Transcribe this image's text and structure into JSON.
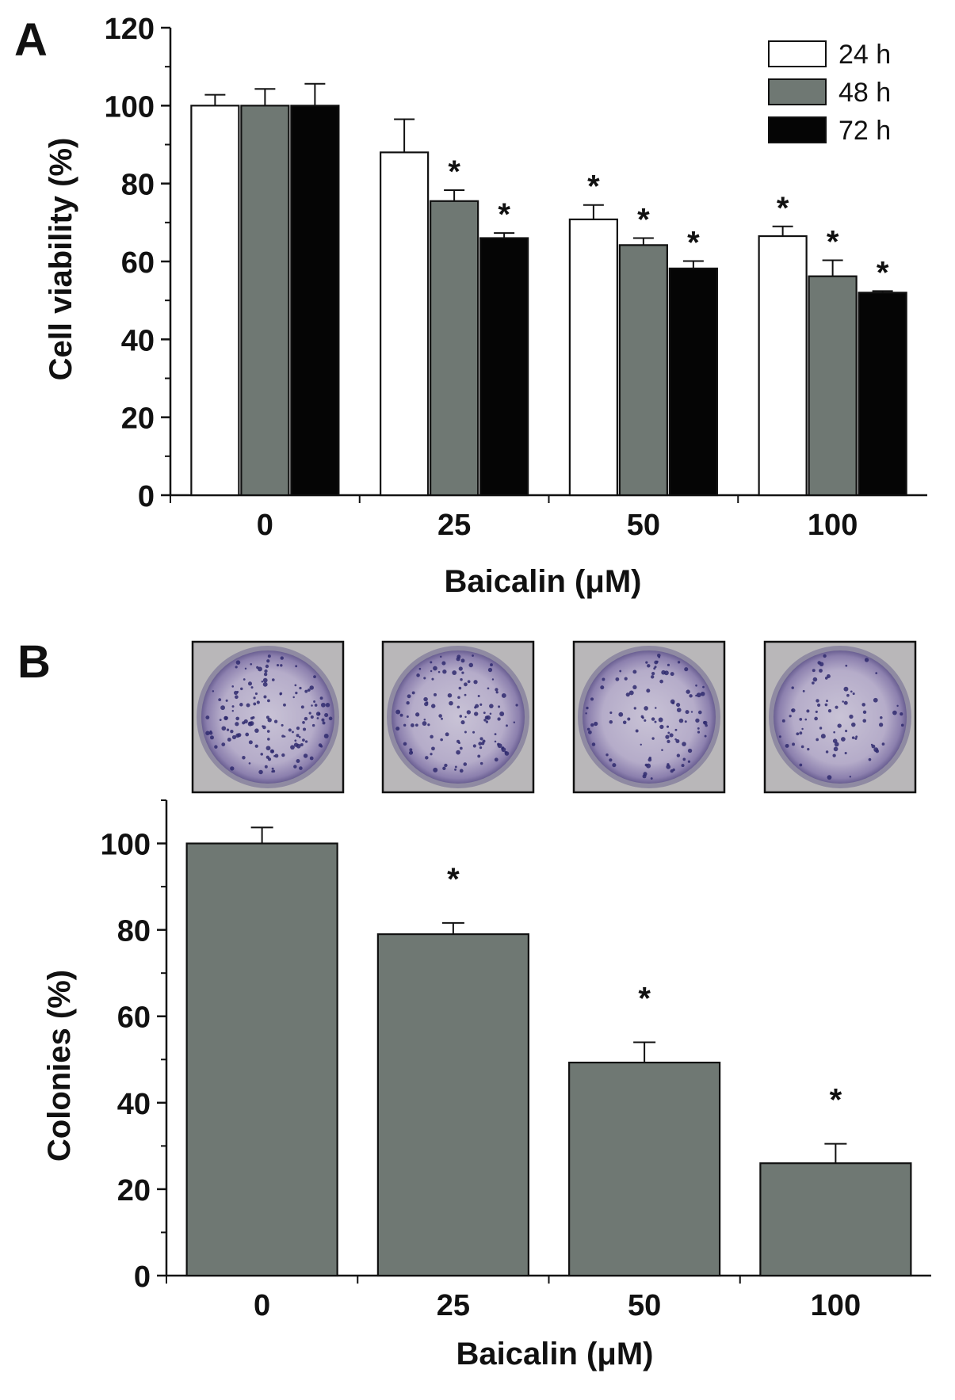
{
  "chart_data": [
    {
      "type": "bar",
      "panel_label": "A",
      "categories": [
        "0",
        "25",
        "50",
        "100"
      ],
      "xlabel": "Baicalin (μM)",
      "ylabel": "Cell viability (%)",
      "ylim": [
        0,
        120
      ],
      "yticks": [
        "0",
        "20",
        "40",
        "60",
        "80",
        "100",
        "120"
      ],
      "legend_position": "top-right",
      "series": [
        {
          "name": "24 h",
          "color": "#ffffff",
          "values": [
            100,
            88,
            70.8,
            66.5
          ],
          "errors": [
            2.8,
            8.5,
            3.7,
            2.5
          ],
          "significance": [
            "",
            "",
            "*",
            "*"
          ]
        },
        {
          "name": "48 h",
          "color": "#6f7873",
          "values": [
            100,
            75.5,
            64.2,
            56.2
          ],
          "errors": [
            4.3,
            2.8,
            1.8,
            4.1
          ],
          "significance": [
            "",
            "*",
            "*",
            "*"
          ]
        },
        {
          "name": "72 h",
          "color": "#050505",
          "values": [
            100,
            66,
            58.2,
            52
          ],
          "errors": [
            5.6,
            1.3,
            1.9,
            0.4
          ],
          "significance": [
            "",
            "*",
            "*",
            "*"
          ]
        }
      ]
    },
    {
      "type": "bar",
      "panel_label": "B",
      "categories": [
        "0",
        "25",
        "50",
        "100"
      ],
      "xlabel": "Baicalin (μM)",
      "ylabel": "Colonies (%)",
      "ylim": [
        0,
        110
      ],
      "yticks": [
        "0",
        "20",
        "40",
        "60",
        "80",
        "100"
      ],
      "series": [
        {
          "color": "#6f7873",
          "values": [
            100,
            79,
            49.3,
            26
          ],
          "errors": [
            3.7,
            2.6,
            4.7,
            4.5
          ],
          "significance": [
            "",
            "*",
            "*",
            "*"
          ]
        }
      ],
      "dish_images": [
        "colony-dish",
        "colony-dish",
        "colony-dish",
        "colony-dish"
      ]
    }
  ]
}
